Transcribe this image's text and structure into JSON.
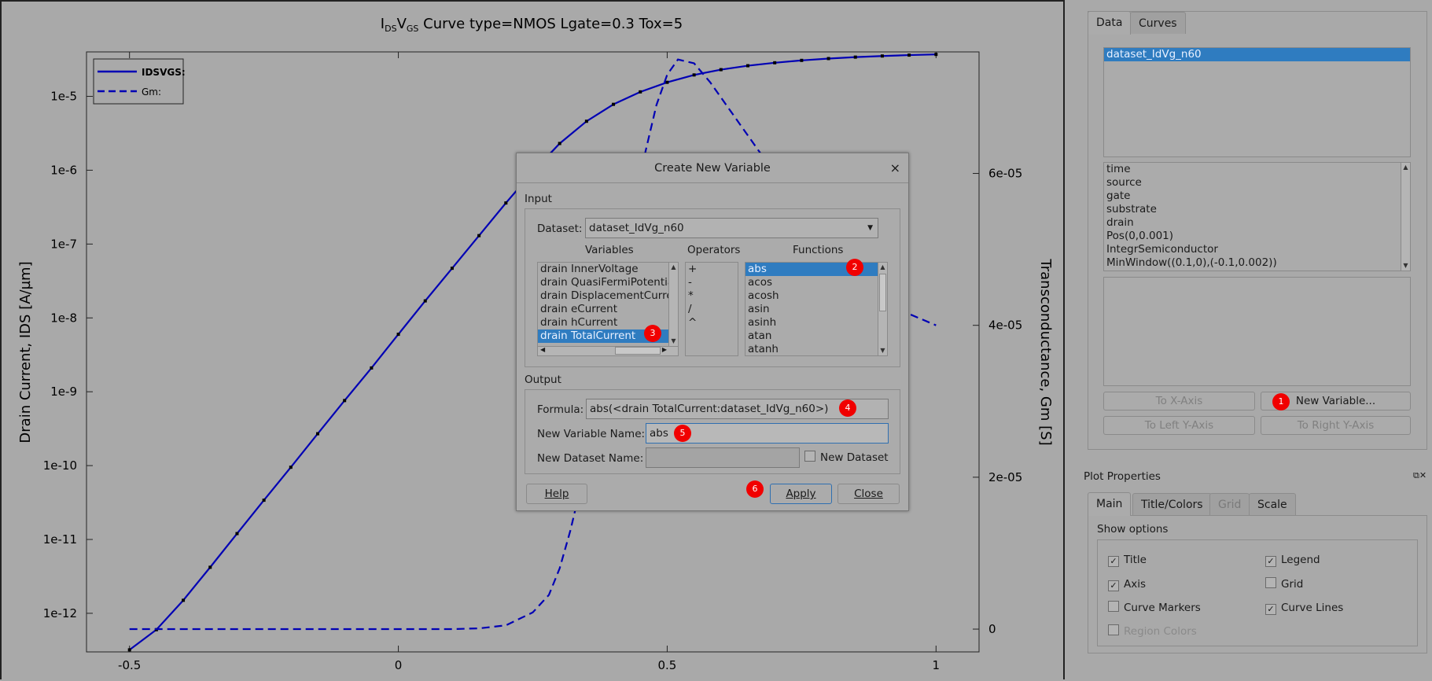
{
  "plot": {
    "title": "IDSVGS Curve type=NMOS Lgate=0.3 Tox=5",
    "title_main": "I",
    "title_sub1": "DS",
    "title_v": "V",
    "title_sub2": "GS",
    "title_rest": " Curve type=NMOS Lgate=0.3 Tox=5",
    "ylabel_left": "Drain Current, IDS [A/µm]",
    "ylabel_right": "Transconductance, Gm [S]",
    "legend": [
      {
        "name": "IDSVGS:",
        "style": "solid"
      },
      {
        "name": "Gm:",
        "style": "dashed"
      }
    ],
    "colors": {
      "curve": "#0000b4",
      "background": "#a9a9a9"
    }
  },
  "chart_data": {
    "type": "line",
    "title": "IDSVGS Curve type=NMOS Lgate=0.3 Tox=5",
    "xlabel": "",
    "ylabel": "Drain Current, IDS [A/µm]",
    "y2label": "Transconductance, Gm [S]",
    "xlim": [
      -0.58,
      1.08
    ],
    "ylim_log": [
      3e-13,
      4e-05
    ],
    "y_scale": "log",
    "y2lim": [
      -3e-06,
      7.6e-05
    ],
    "x_ticks": [
      -0.5,
      0,
      0.5,
      1
    ],
    "x_tick_labels": [
      "-0.5",
      "0",
      "0.5",
      "1"
    ],
    "y_ticks": [
      1e-12,
      1e-11,
      1e-10,
      1e-09,
      1e-08,
      1e-07,
      1e-06,
      1e-05
    ],
    "y_tick_labels": [
      "1e-12",
      "1e-11",
      "1e-10",
      "1e-9",
      "1e-8",
      "1e-7",
      "1e-6",
      "1e-5"
    ],
    "y2_ticks": [
      0,
      2e-05,
      4e-05,
      6e-05
    ],
    "y2_tick_labels": [
      "0",
      "2e-05",
      "4e-05",
      "6e-05"
    ],
    "grid": false,
    "legend_position": "top-left",
    "series": [
      {
        "name": "IDSVGS:",
        "axis": "left",
        "style": "solid-with-markers",
        "x": [
          -0.5,
          -0.45,
          -0.4,
          -0.35,
          -0.3,
          -0.25,
          -0.2,
          -0.15,
          -0.1,
          -0.05,
          0,
          0.05,
          0.1,
          0.15,
          0.2,
          0.25,
          0.3,
          0.35,
          0.4,
          0.45,
          0.5,
          0.55,
          0.6,
          0.65,
          0.7,
          0.75,
          0.8,
          0.85,
          0.9,
          0.95,
          1.0
        ],
        "values": [
          3.2e-13,
          6e-13,
          1.5e-12,
          4.2e-12,
          1.2e-11,
          3.4e-11,
          9.5e-11,
          2.7e-10,
          7.6e-10,
          2.1e-09,
          6e-09,
          1.7e-08,
          4.7e-08,
          1.3e-07,
          3.6e-07,
          9.5e-07,
          2.3e-06,
          4.6e-06,
          7.8e-06,
          1.15e-05,
          1.55e-05,
          1.95e-05,
          2.3e-05,
          2.6e-05,
          2.85e-05,
          3.07e-05,
          3.25e-05,
          3.4e-05,
          3.52e-05,
          3.62e-05,
          3.7e-05
        ]
      },
      {
        "name": "Gm:",
        "axis": "right",
        "style": "dashed",
        "x": [
          -0.5,
          -0.3,
          -0.1,
          0.05,
          0.1,
          0.15,
          0.2,
          0.25,
          0.28,
          0.3,
          0.32,
          0.34,
          0.36,
          0.38,
          0.4,
          0.42,
          0.44,
          0.46,
          0.48,
          0.5,
          0.52,
          0.55,
          0.58,
          0.62,
          0.66,
          0.7,
          0.75,
          0.8,
          0.85,
          0.9,
          0.95,
          1.0
        ],
        "values": [
          0,
          0,
          0,
          0,
          0,
          1e-07,
          5e-07,
          2.2e-06,
          4.5e-06,
          8e-06,
          1.3e-05,
          1.9e-05,
          2.6e-05,
          3.3e-05,
          4e-05,
          4.8e-05,
          5.6e-05,
          6.3e-05,
          6.9e-05,
          7.3e-05,
          7.5e-05,
          7.45e-05,
          7.2e-05,
          6.8e-05,
          6.4e-05,
          6e-05,
          5.55e-05,
          5.1e-05,
          4.7e-05,
          4.4e-05,
          4.15e-05,
          4e-05
        ]
      }
    ]
  },
  "dialog": {
    "title": "Create New Variable",
    "close_glyph": "×",
    "input_label": "Input",
    "dataset_label": "Dataset:",
    "dataset_value": "dataset_IdVg_n60",
    "variables_header": "Variables",
    "operators_header": "Operators",
    "functions_header": "Functions",
    "variables": [
      "drain InnerVoltage",
      "drain QuasiFermiPotentia",
      "drain DisplacementCurre",
      "drain eCurrent",
      "drain hCurrent",
      "drain TotalCurrent"
    ],
    "selected_variable": "drain TotalCurrent",
    "operators": [
      "+",
      "-",
      "*",
      "/",
      "^"
    ],
    "functions": [
      "abs",
      "acos",
      "acosh",
      "asin",
      "asinh",
      "atan",
      "atanh"
    ],
    "selected_function": "abs",
    "output_label": "Output",
    "formula_label": "Formula:",
    "formula_value": "abs(<drain TotalCurrent:dataset_IdVg_n60>)",
    "new_var_label": "New Variable Name:",
    "new_var_value": "abs",
    "new_dataset_label": "New Dataset Name:",
    "new_dataset_value": "",
    "new_dataset_checkbox": "New Dataset",
    "help_button": "Help",
    "apply_button": "Apply",
    "close_button": "Close"
  },
  "badges": [
    "1",
    "2",
    "3",
    "4",
    "5",
    "6"
  ],
  "panel": {
    "tabs": [
      "Data",
      "Curves"
    ],
    "datasets": [
      "dataset_IdVg_n60"
    ],
    "variables": [
      "time",
      "source",
      "gate",
      "substrate",
      "drain",
      "Pos(0,0.001)",
      "IntegrSemiconductor",
      "MinWindow((0.1,0),(-0.1,0.002))"
    ],
    "buttons": {
      "to_x": "To X-Axis",
      "new_var": "New Variable...",
      "to_left_y": "To Left Y-Axis",
      "to_right_y": "To Right Y-Axis"
    }
  },
  "plot_properties": {
    "title": "Plot Properties",
    "tabs": [
      "Main",
      "Title/Colors",
      "Grid",
      "Scale"
    ],
    "show_options_label": "Show options",
    "options": [
      {
        "label": "Title",
        "checked": true,
        "enabled": true
      },
      {
        "label": "Legend",
        "checked": true,
        "enabled": true
      },
      {
        "label": "Axis",
        "checked": true,
        "enabled": true
      },
      {
        "label": "Grid",
        "checked": false,
        "enabled": true
      },
      {
        "label": "Curve Markers",
        "checked": false,
        "enabled": true
      },
      {
        "label": "Curve Lines",
        "checked": true,
        "enabled": true
      },
      {
        "label": "Region Colors",
        "checked": false,
        "enabled": false
      }
    ]
  }
}
